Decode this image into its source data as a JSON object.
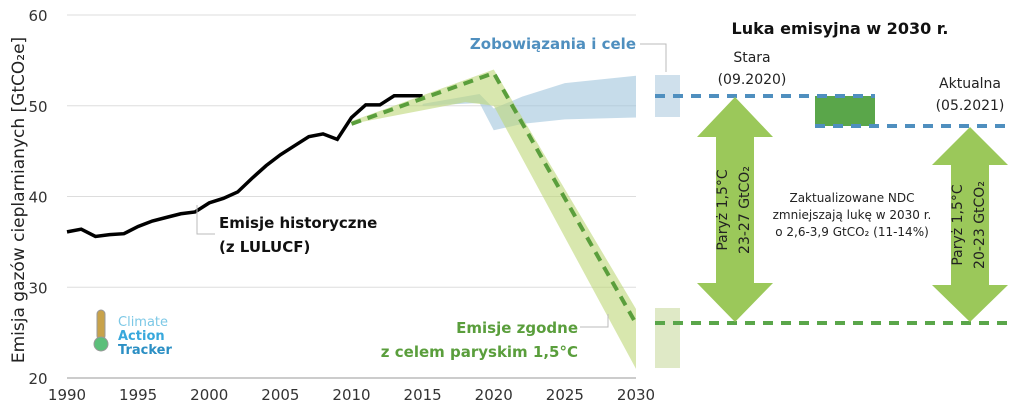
{
  "chart_data": {
    "type": "line",
    "ylabel": "Emisja gazów cieplarnianych [GtCO₂e]",
    "xlim": [
      1990,
      2030
    ],
    "ylim": [
      20,
      60
    ],
    "x_ticks": [
      1990,
      1995,
      2000,
      2005,
      2010,
      2015,
      2020,
      2025,
      2030
    ],
    "y_ticks": [
      20,
      30,
      40,
      50,
      60
    ],
    "grid": true,
    "series": [
      {
        "name": "Emisje historyczne (z LULUCF)",
        "color": "#000000",
        "x": [
          1990,
          1991,
          1992,
          1993,
          1994,
          1995,
          1996,
          1997,
          1998,
          1999,
          2000,
          2001,
          2002,
          2003,
          2004,
          2005,
          2006,
          2007,
          2008,
          2009,
          2010,
          2011,
          2012,
          2013,
          2014,
          2015
        ],
        "y": [
          36.1,
          36.4,
          35.6,
          35.8,
          35.9,
          36.7,
          37.3,
          37.7,
          38.1,
          38.3,
          39.3,
          39.8,
          40.5,
          42.0,
          43.4,
          44.6,
          45.6,
          46.6,
          46.9,
          46.3,
          48.7,
          50.1,
          50.1,
          51.1,
          51.1,
          51.1
        ]
      },
      {
        "name": "Emisje zgodne z celem paryskim 1,5°C",
        "color": "#5a9e3c",
        "dashed": true,
        "x": [
          2010,
          2020,
          2030
        ],
        "y": [
          48.0,
          53.6,
          26.0
        ],
        "band_upper": {
          "x": [
            2010,
            2020,
            2030
          ],
          "y": [
            48.3,
            54.0,
            27.6
          ]
        },
        "band_lower": {
          "x": [
            2010,
            2018,
            2020,
            2030
          ],
          "y": [
            48.0,
            50.4,
            50.0,
            21.0
          ]
        }
      },
      {
        "name": "Zobowiązania i cele",
        "color": "#5b9bc9",
        "band_upper": {
          "x": [
            2015,
            2019,
            2020,
            2022,
            2025,
            2030
          ],
          "y": [
            50.2,
            51.3,
            49.7,
            51.0,
            52.5,
            53.3
          ]
        },
        "band_lower": {
          "x": [
            2015,
            2019,
            2020,
            2022,
            2025,
            2030
          ],
          "y": [
            50.0,
            50.3,
            47.3,
            48.0,
            48.5,
            48.7
          ]
        }
      }
    ],
    "annotations": {
      "historical_label_1": "Emisje historyczne",
      "historical_label_2": "(z LULUCF)",
      "pledges_label": "Zobowiązania i cele",
      "paris_label_1": "Emisje zgodne",
      "paris_label_2": "z celem paryskim 1,5°C"
    },
    "gap_panel": {
      "title": "Luka emisyjna w 2030 r.",
      "old_label_1": "Stara",
      "old_label_2": "(09.2020)",
      "new_label_1": "Aktualna",
      "new_label_2": "(05.2021)",
      "old_pledge_level": 51.0,
      "new_pledge_level": 47.7,
      "paris_level": 26.0,
      "old_arrow_1": "Paryż 1,5°C",
      "old_arrow_2": "23-27 GtCO₂",
      "new_arrow_1": "Paryż 1,5°C",
      "new_arrow_2": "20-23 GtCO₂",
      "note_1": "Zaktualizowane NDC",
      "note_2": "zmniejszają lukę w 2030 r.",
      "note_3": "o 2,6-3,9 GtCO₂ (11-14%)"
    },
    "logo": {
      "line1": "Climate",
      "line2": "Action",
      "line3": "Tracker"
    }
  }
}
